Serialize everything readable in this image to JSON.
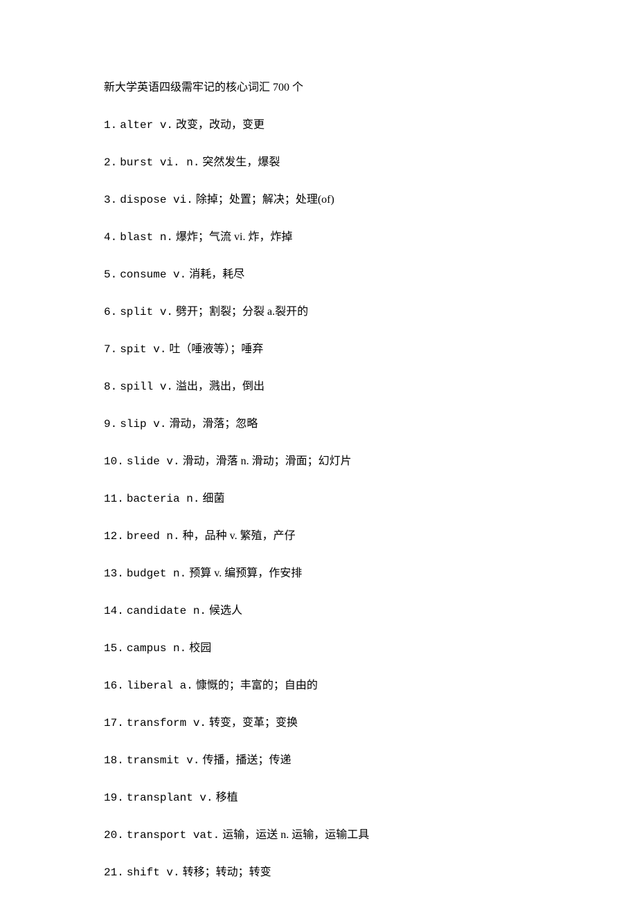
{
  "title": "新大学英语四级需牢记的核心词汇 700 个",
  "entries": [
    {
      "num": "1.",
      "word": "alter v.",
      "def": " 改变，改动，变更"
    },
    {
      "num": "2.",
      "word": "burst vi. n.",
      "def": " 突然发生，爆裂"
    },
    {
      "num": "3.",
      "word": "dispose vi.",
      "def": " 除掉；处置；解决；处理(of)"
    },
    {
      "num": "4.",
      "word": "blast n.",
      "def": " 爆炸；气流 vi. 炸，炸掉"
    },
    {
      "num": "5.",
      "word": "consume v.",
      "def": " 消耗，耗尽"
    },
    {
      "num": "6.",
      "word": "split v.",
      "def": " 劈开；割裂；分裂 a.裂开的"
    },
    {
      "num": "7.",
      "word": "spit v.",
      "def": " 吐（唾液等）；唾弃"
    },
    {
      "num": "8.",
      "word": "spill v.",
      "def": " 溢出，溅出，倒出"
    },
    {
      "num": "9.",
      "word": "slip v.",
      "def": " 滑动，滑落；忽略"
    },
    {
      "num": "10.",
      "word": "slide v.",
      "def": " 滑动，滑落 n. 滑动；滑面；幻灯片"
    },
    {
      "num": "11.",
      "word": "bacteria n.",
      "def": " 细菌"
    },
    {
      "num": "12.",
      "word": "breed n.",
      "def": " 种，品种 v. 繁殖，产仔"
    },
    {
      "num": "13.",
      "word": "budget n.",
      "def": " 预算 v. 编预算，作安排"
    },
    {
      "num": "14.",
      "word": "candidate n.",
      "def": " 候选人"
    },
    {
      "num": "15.",
      "word": "campus n.",
      "def": " 校园"
    },
    {
      "num": "16.",
      "word": "liberal a.",
      "def": " 慷慨的；丰富的；自由的"
    },
    {
      "num": "17.",
      "word": "transform v.",
      "def": " 转变，变革；变换"
    },
    {
      "num": "18.",
      "word": "transmit v.",
      "def": " 传播，播送；传递"
    },
    {
      "num": "19.",
      "word": "transplant v.",
      "def": " 移植"
    },
    {
      "num": "20.",
      "word": "transport vat.",
      "def": " 运输，运送 n. 运输，运输工具"
    },
    {
      "num": "21.",
      "word": "shift v.",
      "def": " 转移；转动；转变"
    }
  ]
}
